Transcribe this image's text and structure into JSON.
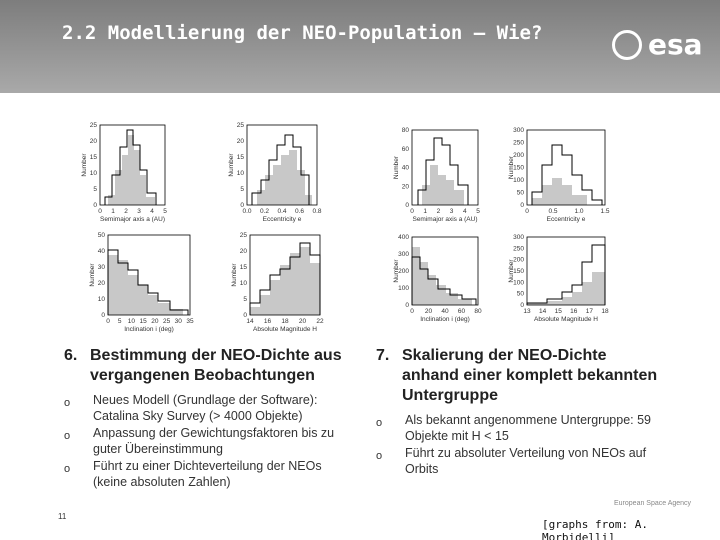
{
  "header": {
    "title": "2.2 Modellierung der NEO-Population – Wie?",
    "logo": "esa"
  },
  "graphs": [
    {
      "ylabel": "Number",
      "yticks": [
        "0",
        "5",
        "10",
        "15",
        "20",
        "25"
      ],
      "xticks": [
        "0",
        "1",
        "2",
        "3",
        "4",
        "5"
      ],
      "xlabel": "Semimajor axis a (AU)"
    },
    {
      "ylabel": "Number",
      "yticks": [
        "0",
        "5",
        "10",
        "15",
        "20",
        "25"
      ],
      "xticks": [
        "0.0",
        "0.2",
        "0.4",
        "0.6",
        "0.8"
      ],
      "xlabel": "Eccentricity e"
    },
    {
      "ylabel": "Number",
      "yticks": [
        "0",
        "20",
        "40",
        "60",
        "80"
      ],
      "xticks": [
        "0",
        "1",
        "2",
        "3",
        "4",
        "5"
      ],
      "xlabel": "Semimajor axis a (AU)"
    },
    {
      "ylabel": "Number",
      "yticks": [
        "0",
        "50",
        "100",
        "150",
        "200",
        "250",
        "300"
      ],
      "xticks": [
        "0",
        "0.5",
        "1.0",
        "1.5"
      ],
      "xlabel": "Eccentricity e"
    },
    {
      "ylabel": "Number",
      "yticks": [
        "0",
        "10",
        "20",
        "30",
        "40",
        "50"
      ],
      "xticks": [
        "0",
        "5",
        "10",
        "15",
        "20",
        "25",
        "30",
        "35"
      ],
      "xlabel": "Inclination i (deg)"
    },
    {
      "ylabel": "Number",
      "yticks": [
        "0",
        "5",
        "10",
        "15",
        "20",
        "25"
      ],
      "xticks": [
        "14",
        "16",
        "18",
        "20",
        "22"
      ],
      "xlabel": "Absolute Magnitude H"
    },
    {
      "ylabel": "Number",
      "yticks": [
        "0",
        "100",
        "200",
        "300",
        "400"
      ],
      "xticks": [
        "0",
        "20",
        "40",
        "60",
        "80"
      ],
      "xlabel": "Inclination i (deg)"
    },
    {
      "ylabel": "Number",
      "yticks": [
        "0",
        "50",
        "100",
        "150",
        "200",
        "250",
        "300"
      ],
      "xticks": [
        "13",
        "14",
        "15",
        "16",
        "17",
        "18"
      ],
      "xlabel": "Absolute Magnitude H"
    }
  ],
  "left": {
    "number": "6.",
    "heading": "Bestimmung der NEO-Dichte aus vergangenen Beobachtungen",
    "marker": "o",
    "bullets": [
      "Neues Modell (Grundlage der Software): Catalina Sky Survey (> 4000 Objekte)",
      "Anpassung der Gewichtungsfaktoren bis zu guter Übereinstimmung",
      "Führt zu einer Dichteverteilung der NEOs (keine absoluten Zahlen)"
    ]
  },
  "right": {
    "number": "7.",
    "heading": "Skalierung der NEO-Dichte anhand einer komplett bekannten Untergruppe",
    "marker": "o",
    "bullets": [
      "Als bekannt angenommene Untergruppe: 59 Objekte mit H < 15",
      "Führt zu absoluter Verteilung von NEOs auf Orbits"
    ]
  },
  "footer": {
    "page": "11",
    "agency": "European Space Agency",
    "credit": "[graphs from: A. Morbidelli]"
  }
}
